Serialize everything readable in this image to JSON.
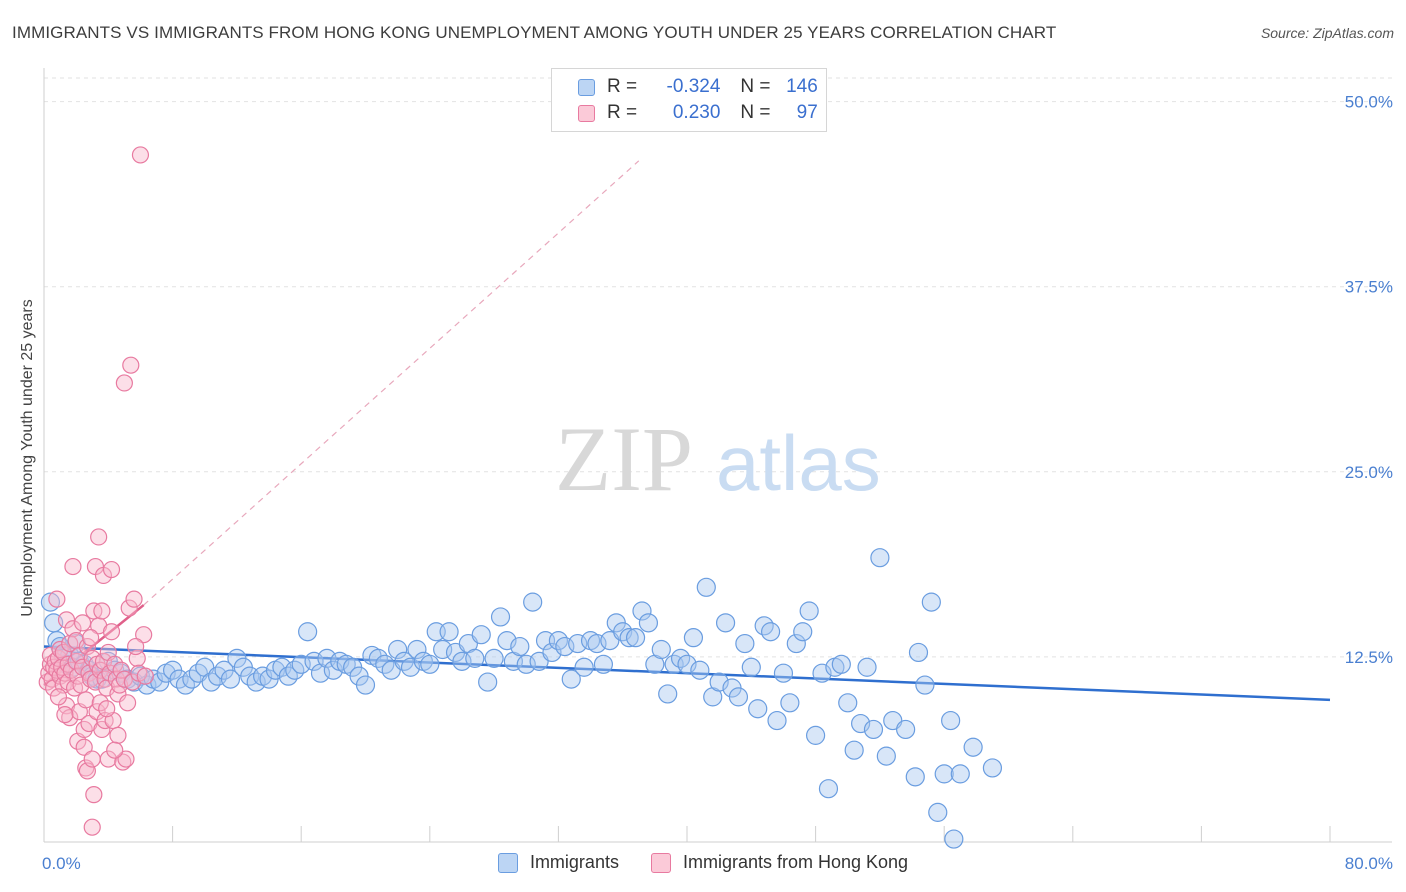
{
  "header": {
    "title": "IMMIGRANTS VS IMMIGRANTS FROM HONG KONG UNEMPLOYMENT AMONG YOUTH UNDER 25 YEARS CORRELATION CHART",
    "source": "Source: ZipAtlas.com"
  },
  "watermark": {
    "zip": "ZIP",
    "atlas": "atlas"
  },
  "legend": {
    "rows": [
      {
        "r_label": "R =",
        "r_value": "-0.324",
        "n_label": "N =",
        "n_value": "146",
        "color": "#a8c8f0",
        "border": "#6a9de0"
      },
      {
        "r_label": "R =",
        "r_value": "0.230",
        "n_label": "N =",
        "n_value": "97",
        "color": "#f8b8cc",
        "border": "#e87aa0"
      }
    ]
  },
  "bottom_legend": [
    "Immigrants",
    "Immigrants from Hong Kong"
  ],
  "chart_data": {
    "type": "scatter",
    "title": "IMMIGRANTS VS IMMIGRANTS FROM HONG KONG UNEMPLOYMENT AMONG YOUTH UNDER 25 YEARS CORRELATION CHART",
    "ylabel": "Unemployment Among Youth under 25 years",
    "xlabel": "",
    "xlim": [
      0,
      80
    ],
    "ylim": [
      0,
      52
    ],
    "x_ticks": [
      "0.0%",
      "80.0%"
    ],
    "y_ticks": [
      {
        "value": 12.5,
        "label": "12.5%"
      },
      {
        "value": 25.0,
        "label": "25.0%"
      },
      {
        "value": 37.5,
        "label": "37.5%"
      },
      {
        "value": 50.0,
        "label": "50.0%"
      }
    ],
    "grid": true,
    "legend_position": "top-center",
    "colors": {
      "immigrants": "#6a9de0",
      "hongkong": "#e87aa0",
      "blue_line": "#2f6fcf",
      "pink_line": "#e0608a"
    },
    "series": [
      {
        "name": "Immigrants",
        "trend": {
          "x": [
            0,
            80
          ],
          "y": [
            13.2,
            9.6
          ]
        },
        "points": [
          [
            0.4,
            16.2
          ],
          [
            0.6,
            14.8
          ],
          [
            0.8,
            13.6
          ],
          [
            1.0,
            13.2
          ],
          [
            1.2,
            12.4
          ],
          [
            1.4,
            12.0
          ],
          [
            1.6,
            12.6
          ],
          [
            1.8,
            11.8
          ],
          [
            2.0,
            13.4
          ],
          [
            2.2,
            12.2
          ],
          [
            2.5,
            12.0
          ],
          [
            2.8,
            11.6
          ],
          [
            3.0,
            11.2
          ],
          [
            3.3,
            11.0
          ],
          [
            3.6,
            11.0
          ],
          [
            4.0,
            12.2
          ],
          [
            4.4,
            11.6
          ],
          [
            4.8,
            11.4
          ],
          [
            5.2,
            11.0
          ],
          [
            5.6,
            10.8
          ],
          [
            6.0,
            11.2
          ],
          [
            6.4,
            10.6
          ],
          [
            6.8,
            11.0
          ],
          [
            7.2,
            10.8
          ],
          [
            7.6,
            11.4
          ],
          [
            8.0,
            11.6
          ],
          [
            8.4,
            11.0
          ],
          [
            8.8,
            10.6
          ],
          [
            9.2,
            11.0
          ],
          [
            9.6,
            11.4
          ],
          [
            10.0,
            11.8
          ],
          [
            10.4,
            10.8
          ],
          [
            10.8,
            11.2
          ],
          [
            11.2,
            11.6
          ],
          [
            11.6,
            11.0
          ],
          [
            12.0,
            12.4
          ],
          [
            12.4,
            11.8
          ],
          [
            12.8,
            11.2
          ],
          [
            13.2,
            10.8
          ],
          [
            13.6,
            11.2
          ],
          [
            14.0,
            11.0
          ],
          [
            14.4,
            11.6
          ],
          [
            14.8,
            11.8
          ],
          [
            15.2,
            11.2
          ],
          [
            15.6,
            11.6
          ],
          [
            16.0,
            12.0
          ],
          [
            16.4,
            14.2
          ],
          [
            16.8,
            12.2
          ],
          [
            17.2,
            11.4
          ],
          [
            17.6,
            12.4
          ],
          [
            18.0,
            11.6
          ],
          [
            18.4,
            12.2
          ],
          [
            18.8,
            12.0
          ],
          [
            19.2,
            11.8
          ],
          [
            19.6,
            11.2
          ],
          [
            20.0,
            10.6
          ],
          [
            20.4,
            12.6
          ],
          [
            20.8,
            12.4
          ],
          [
            21.2,
            12.0
          ],
          [
            21.6,
            11.6
          ],
          [
            22.0,
            13.0
          ],
          [
            22.4,
            12.2
          ],
          [
            22.8,
            11.8
          ],
          [
            23.2,
            13.0
          ],
          [
            23.6,
            12.2
          ],
          [
            24.0,
            12.0
          ],
          [
            24.4,
            14.2
          ],
          [
            24.8,
            13.0
          ],
          [
            25.2,
            14.2
          ],
          [
            25.6,
            12.8
          ],
          [
            26.0,
            12.2
          ],
          [
            26.4,
            13.4
          ],
          [
            26.8,
            12.4
          ],
          [
            27.2,
            14.0
          ],
          [
            27.6,
            10.8
          ],
          [
            28.0,
            12.4
          ],
          [
            28.4,
            15.2
          ],
          [
            28.8,
            13.6
          ],
          [
            29.2,
            12.2
          ],
          [
            29.6,
            13.2
          ],
          [
            30.0,
            12.0
          ],
          [
            30.4,
            16.2
          ],
          [
            30.8,
            12.2
          ],
          [
            31.2,
            13.6
          ],
          [
            31.6,
            12.8
          ],
          [
            32.0,
            13.6
          ],
          [
            32.4,
            13.2
          ],
          [
            32.8,
            11.0
          ],
          [
            33.2,
            13.4
          ],
          [
            33.6,
            11.8
          ],
          [
            34.0,
            13.6
          ],
          [
            34.4,
            13.4
          ],
          [
            34.8,
            12.0
          ],
          [
            35.2,
            13.6
          ],
          [
            35.6,
            14.8
          ],
          [
            36.0,
            14.2
          ],
          [
            36.4,
            13.8
          ],
          [
            36.8,
            13.8
          ],
          [
            37.2,
            15.6
          ],
          [
            37.6,
            14.8
          ],
          [
            38.0,
            12.0
          ],
          [
            38.4,
            13.0
          ],
          [
            38.8,
            10.0
          ],
          [
            39.2,
            12.0
          ],
          [
            39.6,
            12.4
          ],
          [
            40.0,
            12.0
          ],
          [
            40.4,
            13.8
          ],
          [
            40.8,
            11.6
          ],
          [
            41.2,
            17.2
          ],
          [
            41.6,
            9.8
          ],
          [
            42.0,
            10.8
          ],
          [
            42.4,
            14.8
          ],
          [
            42.8,
            10.4
          ],
          [
            43.2,
            9.8
          ],
          [
            43.6,
            13.4
          ],
          [
            44.0,
            11.8
          ],
          [
            44.4,
            9.0
          ],
          [
            44.8,
            14.6
          ],
          [
            45.2,
            14.2
          ],
          [
            45.6,
            8.2
          ],
          [
            46.0,
            11.4
          ],
          [
            46.4,
            9.4
          ],
          [
            46.8,
            13.4
          ],
          [
            47.2,
            14.2
          ],
          [
            47.6,
            15.6
          ],
          [
            48.0,
            7.2
          ],
          [
            48.4,
            11.4
          ],
          [
            48.8,
            3.6
          ],
          [
            49.2,
            11.8
          ],
          [
            49.6,
            12.0
          ],
          [
            50.0,
            9.4
          ],
          [
            50.4,
            6.2
          ],
          [
            50.8,
            8.0
          ],
          [
            51.2,
            11.8
          ],
          [
            51.6,
            7.6
          ],
          [
            52.0,
            19.2
          ],
          [
            52.4,
            5.8
          ],
          [
            52.8,
            8.2
          ],
          [
            53.6,
            7.6
          ],
          [
            54.2,
            4.4
          ],
          [
            54.4,
            12.8
          ],
          [
            54.8,
            10.6
          ],
          [
            55.2,
            16.2
          ],
          [
            55.6,
            2.0
          ],
          [
            56.0,
            4.6
          ],
          [
            56.4,
            8.2
          ],
          [
            56.6,
            0.2
          ],
          [
            57.0,
            4.6
          ],
          [
            57.8,
            6.4
          ],
          [
            59.0,
            5.0
          ]
        ]
      },
      {
        "name": "Immigrants from Hong Kong",
        "trend": {
          "x": [
            0,
            6.2
          ],
          "y": [
            10.6,
            16.0
          ]
        },
        "trend_ext": {
          "x": [
            6.2,
            37.0
          ],
          "y": [
            16.0,
            46.0
          ]
        },
        "points": [
          [
            0.2,
            10.8
          ],
          [
            0.3,
            11.4
          ],
          [
            0.4,
            12.0
          ],
          [
            0.4,
            12.6
          ],
          [
            0.5,
            11.0
          ],
          [
            0.6,
            11.8
          ],
          [
            0.6,
            10.4
          ],
          [
            0.7,
            12.2
          ],
          [
            0.8,
            16.4
          ],
          [
            0.8,
            11.6
          ],
          [
            0.9,
            12.4
          ],
          [
            1.0,
            11.2
          ],
          [
            1.0,
            13.0
          ],
          [
            1.1,
            11.8
          ],
          [
            1.2,
            10.6
          ],
          [
            1.2,
            12.8
          ],
          [
            1.3,
            11.4
          ],
          [
            1.4,
            15.0
          ],
          [
            1.4,
            9.2
          ],
          [
            1.5,
            12.0
          ],
          [
            1.5,
            10.8
          ],
          [
            1.6,
            13.4
          ],
          [
            1.6,
            8.4
          ],
          [
            1.7,
            11.6
          ],
          [
            1.8,
            14.4
          ],
          [
            1.8,
            18.6
          ],
          [
            1.9,
            10.4
          ],
          [
            2.0,
            13.6
          ],
          [
            2.0,
            12.2
          ],
          [
            2.1,
            6.8
          ],
          [
            2.1,
            11.2
          ],
          [
            2.2,
            8.8
          ],
          [
            2.2,
            12.6
          ],
          [
            2.3,
            10.6
          ],
          [
            2.4,
            14.8
          ],
          [
            2.4,
            11.8
          ],
          [
            2.5,
            7.6
          ],
          [
            2.5,
            6.4
          ],
          [
            2.6,
            9.6
          ],
          [
            2.6,
            5.0
          ],
          [
            2.7,
            13.2
          ],
          [
            2.7,
            4.8
          ],
          [
            2.8,
            11.4
          ],
          [
            2.8,
            8.0
          ],
          [
            2.9,
            11.0
          ],
          [
            3.0,
            12.4
          ],
          [
            3.0,
            5.6
          ],
          [
            3.0,
            1.0
          ],
          [
            3.1,
            15.6
          ],
          [
            3.1,
            3.2
          ],
          [
            3.2,
            10.8
          ],
          [
            3.2,
            18.6
          ],
          [
            3.3,
            8.8
          ],
          [
            3.3,
            12.0
          ],
          [
            3.4,
            14.6
          ],
          [
            3.4,
            20.6
          ],
          [
            3.5,
            11.6
          ],
          [
            3.5,
            9.4
          ],
          [
            3.6,
            15.6
          ],
          [
            3.6,
            7.6
          ],
          [
            3.7,
            12.2
          ],
          [
            3.7,
            18.0
          ],
          [
            3.8,
            11.0
          ],
          [
            3.8,
            8.2
          ],
          [
            3.9,
            10.4
          ],
          [
            4.0,
            12.8
          ],
          [
            4.0,
            5.6
          ],
          [
            4.1,
            11.4
          ],
          [
            4.2,
            14.2
          ],
          [
            4.2,
            18.4
          ],
          [
            4.3,
            8.2
          ],
          [
            4.4,
            12.0
          ],
          [
            4.5,
            11.0
          ],
          [
            4.6,
            10.0
          ],
          [
            4.6,
            7.2
          ],
          [
            4.7,
            10.6
          ],
          [
            4.8,
            11.6
          ],
          [
            4.9,
            5.4
          ],
          [
            5.0,
            31.0
          ],
          [
            5.0,
            11.0
          ],
          [
            5.1,
            5.6
          ],
          [
            5.2,
            9.4
          ],
          [
            5.3,
            15.8
          ],
          [
            5.4,
            32.2
          ],
          [
            5.5,
            10.8
          ],
          [
            5.6,
            16.4
          ],
          [
            5.8,
            12.4
          ],
          [
            5.9,
            11.4
          ],
          [
            6.0,
            46.4
          ],
          [
            6.2,
            14.0
          ],
          [
            6.3,
            11.2
          ],
          [
            1.3,
            8.6
          ],
          [
            2.9,
            13.8
          ],
          [
            0.9,
            9.8
          ],
          [
            3.9,
            9.0
          ],
          [
            4.4,
            6.2
          ],
          [
            5.7,
            13.2
          ]
        ]
      }
    ]
  }
}
